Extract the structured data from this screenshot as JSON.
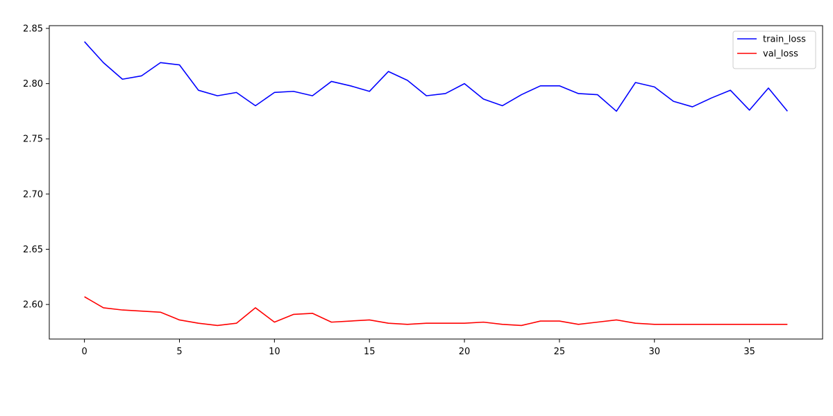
{
  "chart_data": {
    "type": "line",
    "title": "",
    "xlabel": "",
    "ylabel": "",
    "xlim": [
      -1.85,
      38.85
    ],
    "ylim": [
      2.5687,
      2.8525
    ],
    "xticks": [
      0,
      5,
      10,
      15,
      20,
      25,
      30,
      35
    ],
    "yticks": [
      2.6,
      2.65,
      2.7,
      2.75,
      2.8,
      2.85
    ],
    "ytick_format_decimals": 2,
    "grid": false,
    "legend": "top-right",
    "x": [
      0,
      1,
      2,
      3,
      4,
      5,
      6,
      7,
      8,
      9,
      10,
      11,
      12,
      13,
      14,
      15,
      16,
      17,
      18,
      19,
      20,
      21,
      22,
      23,
      24,
      25,
      26,
      27,
      28,
      29,
      30,
      31,
      32,
      33,
      34,
      35,
      36,
      37
    ],
    "series": [
      {
        "name": "train_loss",
        "color": "#0000ff",
        "values": [
          2.838,
          2.819,
          2.804,
          2.807,
          2.819,
          2.817,
          2.794,
          2.789,
          2.792,
          2.78,
          2.792,
          2.793,
          2.789,
          2.802,
          2.798,
          2.793,
          2.811,
          2.803,
          2.789,
          2.791,
          2.8,
          2.786,
          2.78,
          2.79,
          2.798,
          2.798,
          2.791,
          2.79,
          2.775,
          2.801,
          2.797,
          2.784,
          2.779,
          2.787,
          2.794,
          2.776,
          2.796,
          2.775
        ]
      },
      {
        "name": "val_loss",
        "color": "#ff0000",
        "values": [
          2.607,
          2.597,
          2.595,
          2.594,
          2.593,
          2.586,
          2.583,
          2.581,
          2.583,
          2.597,
          2.584,
          2.591,
          2.592,
          2.584,
          2.585,
          2.586,
          2.583,
          2.582,
          2.583,
          2.583,
          2.583,
          2.584,
          2.582,
          2.581,
          2.585,
          2.585,
          2.582,
          2.584,
          2.586,
          2.583,
          2.582,
          2.582,
          2.582,
          2.582,
          2.582,
          2.582,
          2.582,
          2.582
        ]
      }
    ]
  }
}
